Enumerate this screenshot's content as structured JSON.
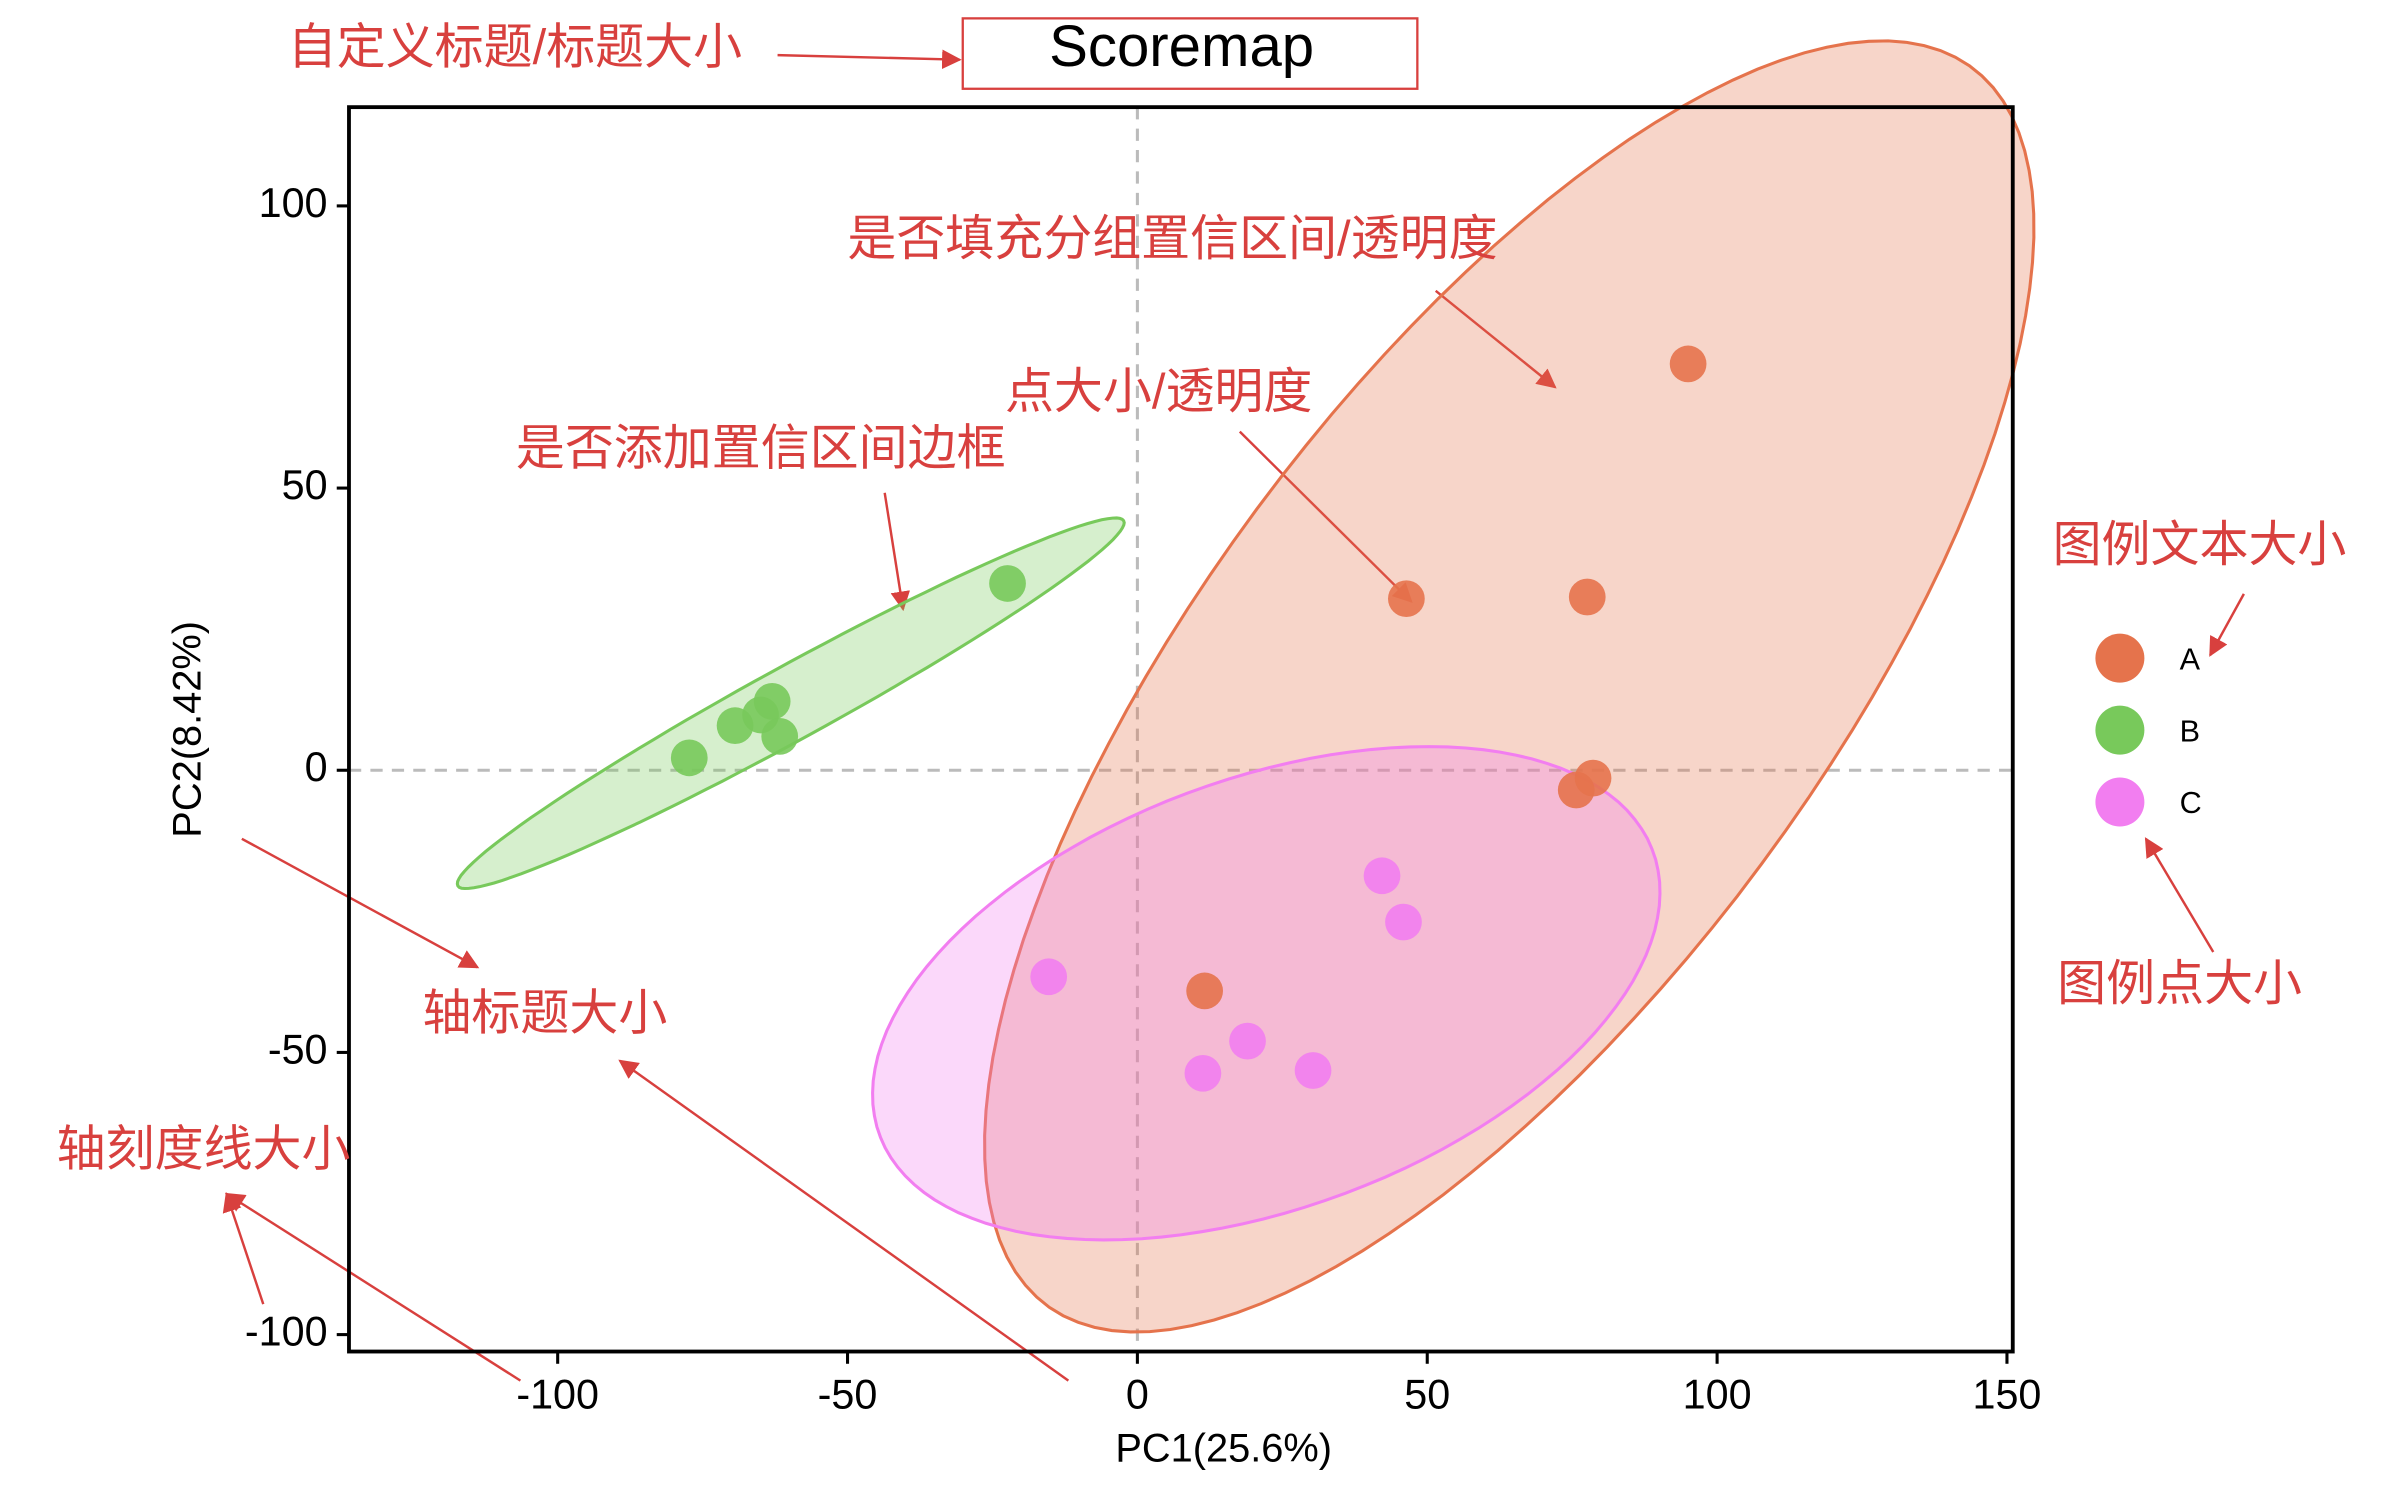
{
  "chart_data": {
    "type": "scatter",
    "title": "Scoremap",
    "x_label": "PC1(25.6%)",
    "y_label": "PC2(8.42%)",
    "xlim": [
      -136,
      151
    ],
    "ylim": [
      -103,
      117.5
    ],
    "xticks": [
      -100,
      -50,
      0,
      50,
      100,
      150
    ],
    "yticks": [
      -100,
      -50,
      0,
      50,
      100
    ],
    "hline": 0,
    "vline": 0,
    "ellipses": true,
    "ellipse_fill": true,
    "legend": "right",
    "series": [
      {
        "name": "A",
        "color": "#e5734c",
        "x": [
          95,
          46.4,
          77.6,
          78.6,
          75.7,
          11.6
        ],
        "y": [
          72,
          30.4,
          30.7,
          -1.4,
          -3.5,
          -39.1
        ]
      },
      {
        "name": "B",
        "color": "#78c95b",
        "x": [
          -22.4,
          -63,
          -65,
          -69.4,
          -61.7,
          -77.3
        ],
        "y": [
          33.1,
          12.2,
          9.8,
          7.9,
          6,
          2.2
        ]
      },
      {
        "name": "C",
        "color": "#f27ef0",
        "x": [
          -15.3,
          42.2,
          45.9,
          19,
          11.3,
          30.3
        ],
        "y": [
          -36.6,
          -18.7,
          -26.9,
          -48,
          -53.7,
          -53.2
        ]
      }
    ],
    "annotations": [
      "自定义标题/标题大小",
      "是否填充分组置信区间/透明度",
      "点大小/透明度",
      "是否添加置信区间边框",
      "图例文本大小",
      "图例点大小",
      "轴标题大小",
      "轴刻度线大小"
    ]
  }
}
